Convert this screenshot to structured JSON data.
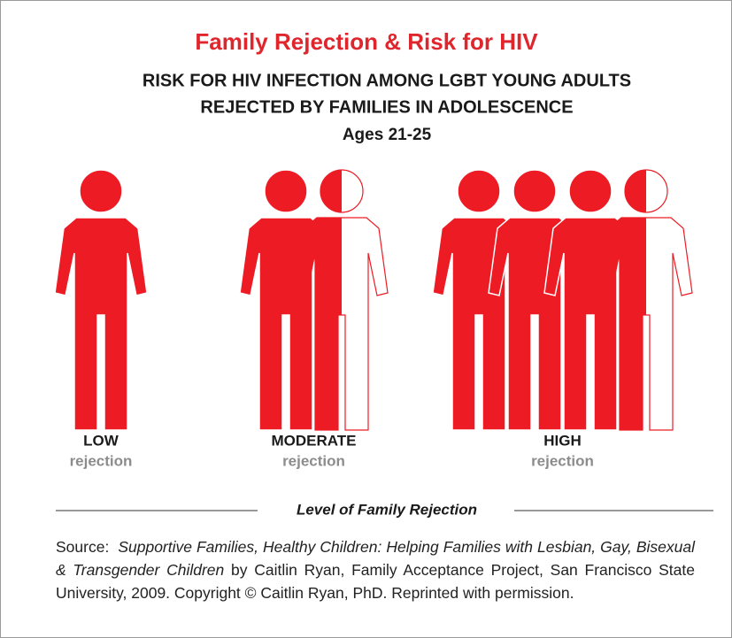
{
  "chart_data": {
    "type": "pictograph",
    "title": "Family Rejection & Risk for HIV",
    "subtitle": [
      "RISK FOR HIV INFECTION AMONG LGBT YOUNG ADULTS",
      "REJECTED BY FAMILIES IN ADOLESCENCE",
      "Ages 21-25"
    ],
    "categories": [
      "LOW",
      "MODERATE",
      "HIGH"
    ],
    "category_note": "rejection",
    "values": [
      1,
      1.5,
      3.5
    ],
    "color": "#ed1c24",
    "x_label": "Level of Family Rejection"
  },
  "source": {
    "label": "Source:",
    "title": "Supportive Families, Healthy Children: Helping Families with Lesbian, Gay, Bisexual & Transgender Children",
    "rest": "by Caitlin Ryan, Family Acceptance Project, San Francisco State University, 2009. Copyright © Caitlin Ryan, PhD. Reprinted with permission."
  }
}
